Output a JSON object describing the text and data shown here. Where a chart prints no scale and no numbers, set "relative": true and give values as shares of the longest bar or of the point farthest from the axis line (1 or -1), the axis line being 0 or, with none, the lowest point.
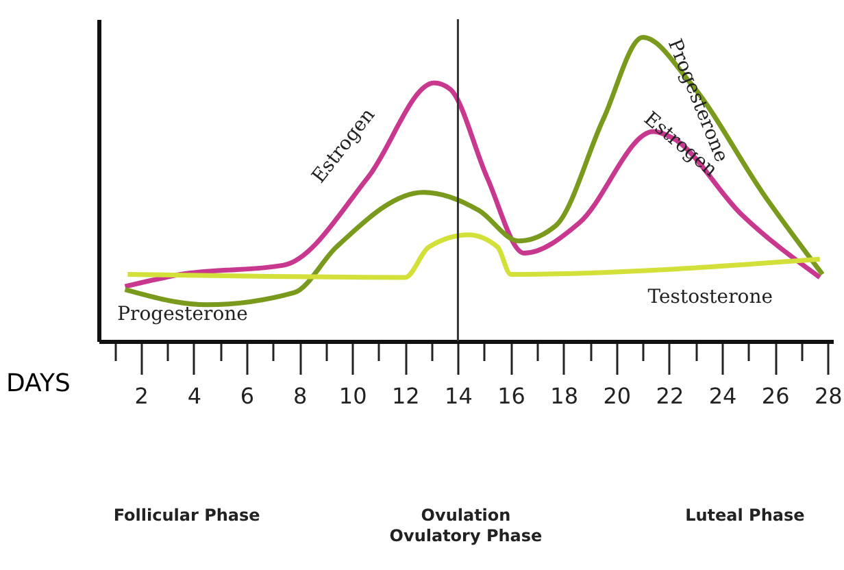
{
  "chart_data": {
    "type": "line",
    "xlabel": "DAYS",
    "relative": true,
    "xlim": [
      0.4,
      28.2
    ],
    "xticks": [
      {
        "value": 1,
        "label": null
      },
      2,
      {
        "value": 3,
        "label": null
      },
      4,
      {
        "value": 5,
        "label": null
      },
      6,
      {
        "value": 7,
        "label": null
      },
      8,
      {
        "value": 9,
        "label": null
      },
      10,
      {
        "value": 11,
        "label": null
      },
      12,
      {
        "value": 13,
        "label": null
      },
      14,
      {
        "value": 15,
        "label": null
      },
      16,
      {
        "value": 17,
        "label": null
      },
      18,
      {
        "value": 19,
        "label": null
      },
      20,
      {
        "value": 21,
        "label": null
      },
      22,
      {
        "value": 23,
        "label": null
      },
      24,
      {
        "value": 25,
        "label": null
      },
      26,
      {
        "value": 27,
        "label": null
      },
      28
    ],
    "series": [
      {
        "name": "Estrogen",
        "color": "#c8388f",
        "x": [
          1.4,
          3.5,
          7.4,
          10.6,
          13.1,
          13.7,
          15.1,
          16.5,
          18.6,
          21.4,
          22.1,
          24.7,
          27.7
        ],
        "values": [
          0.18,
          0.22,
          0.25,
          0.54,
          0.85,
          0.83,
          0.54,
          0.29,
          0.39,
          0.69,
          0.67,
          0.42,
          0.21
        ]
      },
      {
        "name": "Progesterone",
        "color": "#7a9a1e",
        "x": [
          1.4,
          4.5,
          7.8,
          9.4,
          12.7,
          14.8,
          16.3,
          17.7,
          19.5,
          21.0,
          22.8,
          25.6,
          27.8
        ],
        "values": [
          0.17,
          0.12,
          0.16,
          0.31,
          0.49,
          0.43,
          0.33,
          0.38,
          0.73,
          1.0,
          0.85,
          0.48,
          0.22
        ]
      },
      {
        "name": "Testosterone",
        "color": "#d4e03a",
        "x": [
          1.5,
          12.0,
          12.9,
          14.4,
          15.5,
          16.0,
          27.7
        ],
        "values": [
          0.22,
          0.21,
          0.31,
          0.35,
          0.31,
          0.22,
          0.27
        ]
      }
    ],
    "ref_lines": [
      {
        "axis": "x",
        "value": 14,
        "color": "#333333"
      }
    ],
    "annotations": [
      "Follicular Phase",
      "Ovulation\nOvulatory Phase",
      "Luteal Phase"
    ],
    "grid": false,
    "marker": "none",
    "line_style": "solid"
  }
}
